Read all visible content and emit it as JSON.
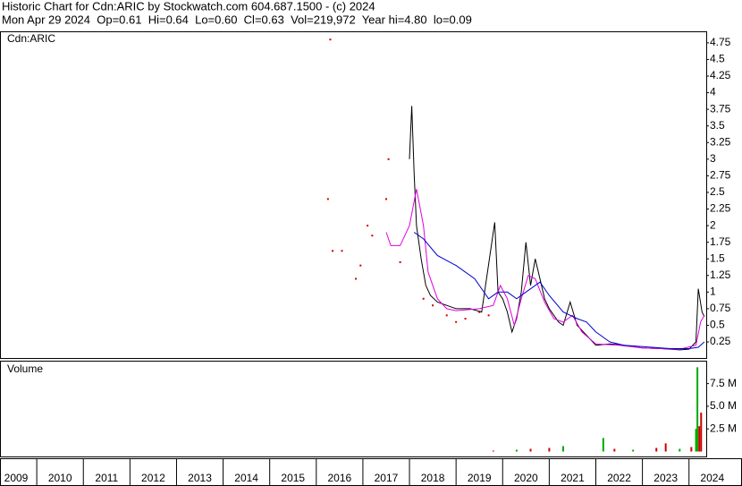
{
  "header": {
    "title": "Historic Chart for Cdn:ARIC by Stockwatch.com 604.687.1500 - (c) 2024",
    "quote": "Mon Apr 29 2024  Op=0.61  Hi=0.64  Lo=0.60  Cl=0.63  Vol=219,972  Year hi=4.80  lo=0.09"
  },
  "chart_data": [
    {
      "type": "line",
      "label": "Cdn:ARIC",
      "xlim": [
        2009.23,
        2024.37
      ],
      "ylim": [
        0,
        4.91
      ],
      "yticks": [
        0.25,
        0.5,
        0.75,
        1,
        1.25,
        1.5,
        1.75,
        2,
        2.25,
        2.5,
        2.75,
        3,
        3.25,
        3.5,
        3.75,
        4,
        4.25,
        4.5,
        4.75
      ],
      "series": [
        {
          "color": "#cc0000",
          "marker": "dot",
          "x": [
            2016.25,
            2016.3,
            2016.35,
            2016.55,
            2016.85,
            2016.95,
            2017.1,
            2017.2,
            2017.5,
            2017.55,
            2017.8,
            2018.3,
            2018.5,
            2018.8,
            2019.0,
            2019.2,
            2019.5,
            2019.7
          ],
          "values": [
            2.4,
            4.8,
            1.62,
            1.62,
            1.2,
            1.4,
            2.0,
            1.85,
            2.4,
            3.0,
            1.45,
            0.9,
            0.8,
            0.65,
            0.55,
            0.6,
            0.7,
            0.65
          ]
        },
        {
          "color": "#000000",
          "marker": "line",
          "x": [
            2018.0,
            2018.05,
            2018.1,
            2018.15,
            2018.25,
            2018.35,
            2018.45,
            2018.6,
            2018.8,
            2019.0,
            2019.3,
            2019.55,
            2019.83,
            2019.9,
            2020.0,
            2020.1,
            2020.2,
            2020.3,
            2020.4,
            2020.5,
            2020.6,
            2020.7,
            2020.8,
            2020.9,
            2021.0,
            2021.2,
            2021.3,
            2021.45,
            2021.6,
            2021.8,
            2022.0,
            2022.3,
            2022.6,
            2023.0,
            2023.4,
            2023.8,
            2024.0,
            2024.15,
            2024.2,
            2024.28,
            2024.33
          ],
          "values": [
            3.0,
            3.8,
            2.8,
            2.0,
            1.5,
            1.1,
            0.95,
            0.85,
            0.8,
            0.75,
            0.75,
            0.7,
            2.05,
            1.0,
            0.9,
            0.7,
            0.4,
            0.6,
            1.0,
            1.75,
            1.1,
            1.5,
            1.2,
            0.9,
            0.75,
            0.55,
            0.5,
            0.85,
            0.5,
            0.35,
            0.2,
            0.22,
            0.2,
            0.16,
            0.15,
            0.13,
            0.14,
            0.25,
            1.05,
            0.7,
            0.63
          ]
        },
        {
          "color": "#e000e0",
          "marker": "line",
          "x": [
            2017.5,
            2017.6,
            2017.8,
            2018.0,
            2018.15,
            2018.3,
            2018.4,
            2018.6,
            2018.8,
            2019.0,
            2019.5,
            2019.8,
            2019.95,
            2020.1,
            2020.25,
            2020.4,
            2020.55,
            2020.7,
            2020.9,
            2021.1,
            2021.3,
            2021.5,
            2021.7,
            2022.0,
            2022.5,
            2023.0,
            2023.8,
            2024.15,
            2024.25,
            2024.33
          ],
          "values": [
            1.9,
            1.7,
            1.7,
            2.0,
            2.55,
            2.0,
            1.3,
            0.9,
            0.75,
            0.72,
            0.75,
            0.8,
            1.1,
            0.9,
            0.5,
            0.9,
            1.25,
            1.2,
            0.85,
            0.6,
            0.55,
            0.65,
            0.4,
            0.22,
            0.2,
            0.16,
            0.14,
            0.2,
            0.55,
            0.65
          ]
        },
        {
          "color": "#0000cc",
          "marker": "line",
          "x": [
            2018.1,
            2018.3,
            2018.6,
            2019.0,
            2019.4,
            2019.7,
            2019.9,
            2020.1,
            2020.3,
            2020.5,
            2020.8,
            2021.0,
            2021.3,
            2021.6,
            2021.8,
            2022.0,
            2022.3,
            2022.6,
            2023.0,
            2023.6,
            2024.0,
            2024.2,
            2024.33
          ],
          "values": [
            1.9,
            1.8,
            1.55,
            1.4,
            1.2,
            0.9,
            1.0,
            1.0,
            0.9,
            1.0,
            1.15,
            0.95,
            0.7,
            0.6,
            0.55,
            0.4,
            0.25,
            0.2,
            0.18,
            0.15,
            0.15,
            0.17,
            0.25
          ]
        }
      ]
    },
    {
      "type": "bar",
      "label": "Volume",
      "xlim": [
        2009.23,
        2024.37
      ],
      "ylim": [
        0,
        9.93
      ],
      "yticks": [
        {
          "value": 2.5,
          "label": "2.5 M"
        },
        {
          "value": 5,
          "label": "5.0 M"
        },
        {
          "value": 7.5,
          "label": "7.5 M"
        }
      ],
      "xticks": [
        2009,
        2010,
        2011,
        2012,
        2013,
        2014,
        2015,
        2016,
        2017,
        2018,
        2019,
        2020,
        2021,
        2022,
        2023,
        2024
      ],
      "x": [
        2019.8,
        2020.3,
        2020.6,
        2021.0,
        2021.3,
        2022.16,
        2022.4,
        2022.8,
        2023.3,
        2023.5,
        2023.8,
        2024.05,
        2024.15,
        2024.18,
        2024.22,
        2024.26
      ],
      "values": [
        0.1,
        0.2,
        0.3,
        0.4,
        0.6,
        1.5,
        0.3,
        0.2,
        0.4,
        0.9,
        0.3,
        0.5,
        2.5,
        9.3,
        2.8,
        4.3
      ],
      "colors": [
        "#cc0000",
        "#00aa00",
        "#cc0000",
        "#cc0000",
        "#00aa00",
        "#00aa00",
        "#cc0000",
        "#00aa00",
        "#cc0000",
        "#cc0000",
        "#00aa00",
        "#cc0000",
        "#00aa00",
        "#00aa00",
        "#cc0000",
        "#cc0000"
      ]
    }
  ]
}
